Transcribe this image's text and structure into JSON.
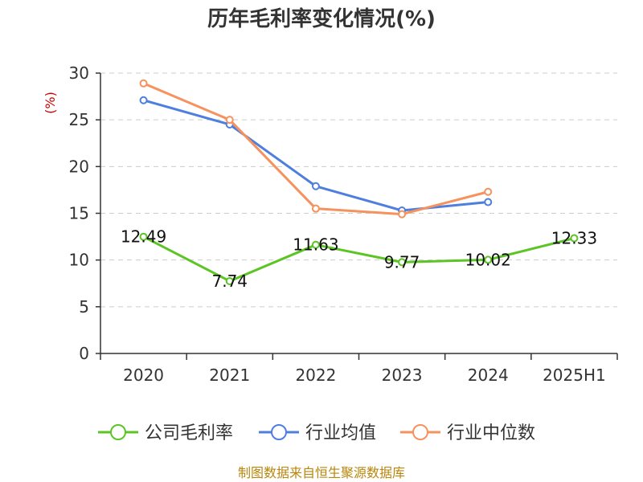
{
  "chart_data": {
    "type": "line",
    "title": "历年毛利率变化情况(%)",
    "unit_label": "(%)",
    "categories": [
      "2020",
      "2021",
      "2022",
      "2023",
      "2024",
      "2025H1"
    ],
    "ylim": [
      0,
      30
    ],
    "yticks": [
      0,
      5,
      10,
      15,
      20,
      25,
      30
    ],
    "grid": true,
    "legend_position": "bottom",
    "series": [
      {
        "name": "公司毛利率",
        "color": "#5cc424",
        "values": [
          12.49,
          7.74,
          11.63,
          9.77,
          10.02,
          12.33
        ],
        "labels": [
          "12.49",
          "7.74",
          "11.63",
          "9.77",
          "10.02",
          "12.33"
        ]
      },
      {
        "name": "行业均值",
        "color": "#4e7fde",
        "values": [
          27.1,
          24.5,
          17.9,
          15.3,
          16.2,
          null
        ]
      },
      {
        "name": "行业中位数",
        "color": "#f5925e",
        "values": [
          28.9,
          25.0,
          15.5,
          14.9,
          17.3,
          null
        ]
      }
    ],
    "source": "制图数据来自恒生聚源数据库"
  }
}
